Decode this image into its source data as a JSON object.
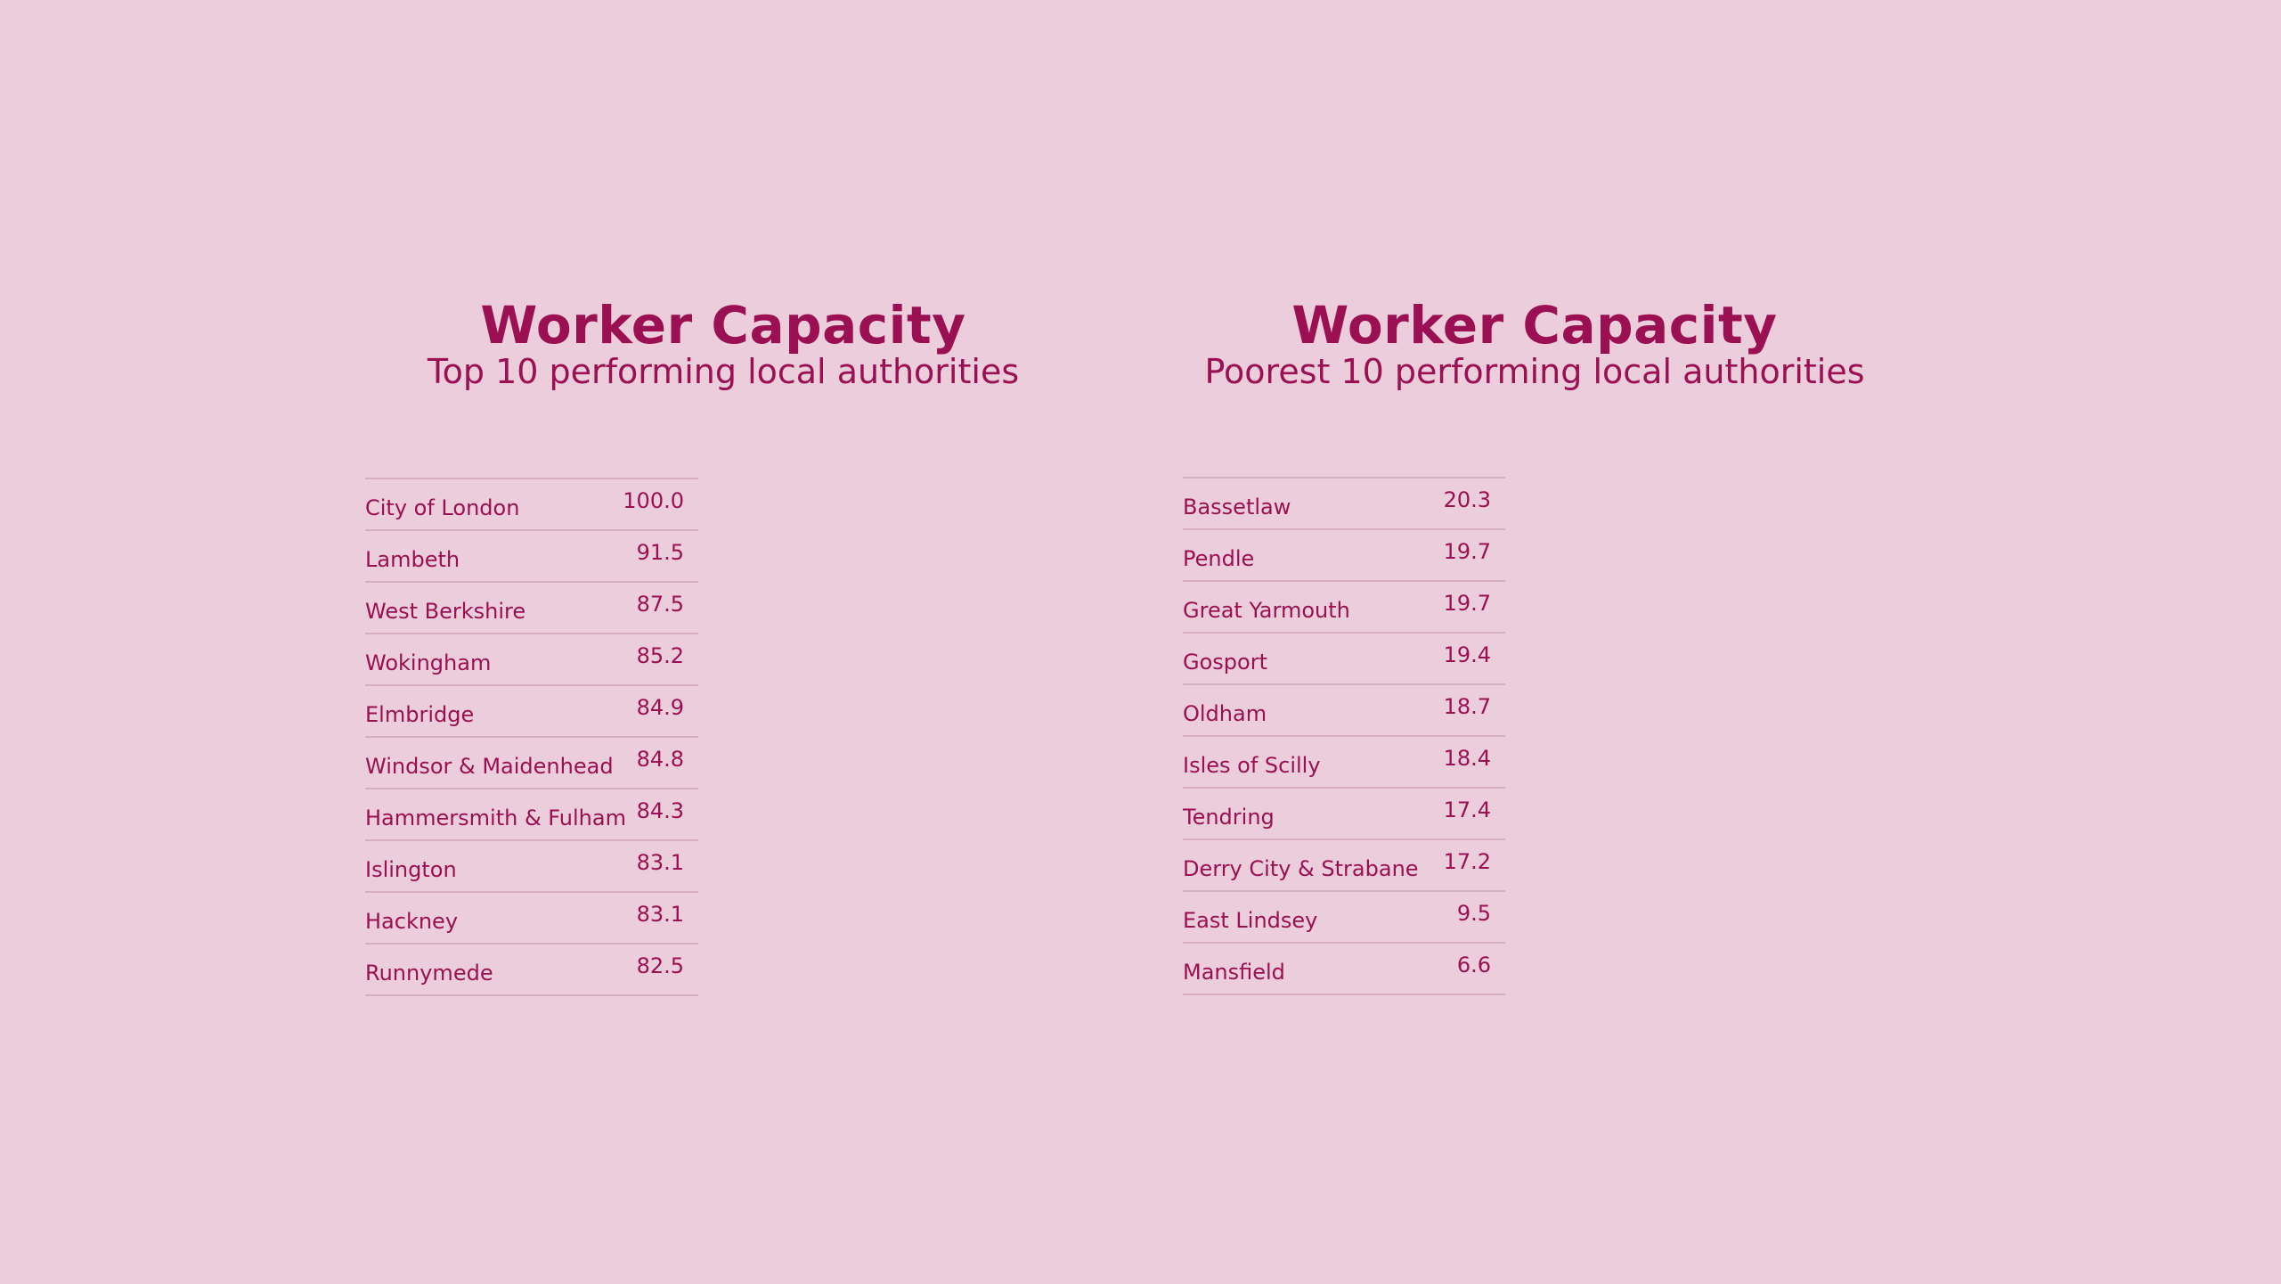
{
  "colors": {
    "background": "#ebcddc",
    "text": "#9b1053",
    "divider": "#d6aec3"
  },
  "left": {
    "title": "Worker Capacity",
    "subtitle": "Top 10 performing local authorities",
    "rows": [
      {
        "name": "City of London",
        "value": "100.0"
      },
      {
        "name": "Lambeth",
        "value": "91.5"
      },
      {
        "name": "West Berkshire",
        "value": "87.5"
      },
      {
        "name": "Wokingham",
        "value": "85.2"
      },
      {
        "name": "Elmbridge",
        "value": "84.9"
      },
      {
        "name": "Windsor & Maidenhead",
        "value": "84.8"
      },
      {
        "name": "Hammersmith & Fulham",
        "value": "84.3"
      },
      {
        "name": "Islington",
        "value": "83.1"
      },
      {
        "name": "Hackney",
        "value": "83.1"
      },
      {
        "name": "Runnymede",
        "value": "82.5"
      }
    ]
  },
  "right": {
    "title": "Worker Capacity",
    "subtitle": "Poorest 10 performing local authorities",
    "rows": [
      {
        "name": "Bassetlaw",
        "value": "20.3"
      },
      {
        "name": "Pendle",
        "value": "19.7"
      },
      {
        "name": "Great Yarmouth",
        "value": "19.7"
      },
      {
        "name": "Gosport",
        "value": "19.4"
      },
      {
        "name": "Oldham",
        "value": "18.7"
      },
      {
        "name": "Isles of Scilly",
        "value": "18.4"
      },
      {
        "name": "Tendring",
        "value": "17.4"
      },
      {
        "name": "Derry City & Strabane",
        "value": "17.2"
      },
      {
        "name": "East Lindsey",
        "value": "9.5"
      },
      {
        "name": "Mansfield",
        "value": "6.6"
      }
    ]
  },
  "chart_data": [
    {
      "type": "table",
      "title": "Worker Capacity",
      "subtitle": "Top 10 performing local authorities",
      "categories": [
        "City of London",
        "Lambeth",
        "West Berkshire",
        "Wokingham",
        "Elmbridge",
        "Windsor & Maidenhead",
        "Hammersmith & Fulham",
        "Islington",
        "Hackney",
        "Runnymede"
      ],
      "values": [
        100.0,
        91.5,
        87.5,
        85.2,
        84.9,
        84.8,
        84.3,
        83.1,
        83.1,
        82.5
      ]
    },
    {
      "type": "table",
      "title": "Worker Capacity",
      "subtitle": "Poorest 10 performing local authorities",
      "categories": [
        "Bassetlaw",
        "Pendle",
        "Great Yarmouth",
        "Gosport",
        "Oldham",
        "Isles of Scilly",
        "Tendring",
        "Derry City & Strabane",
        "East Lindsey",
        "Mansfield"
      ],
      "values": [
        20.3,
        19.7,
        19.7,
        19.4,
        18.7,
        18.4,
        17.4,
        17.2,
        9.5,
        6.6
      ]
    }
  ]
}
